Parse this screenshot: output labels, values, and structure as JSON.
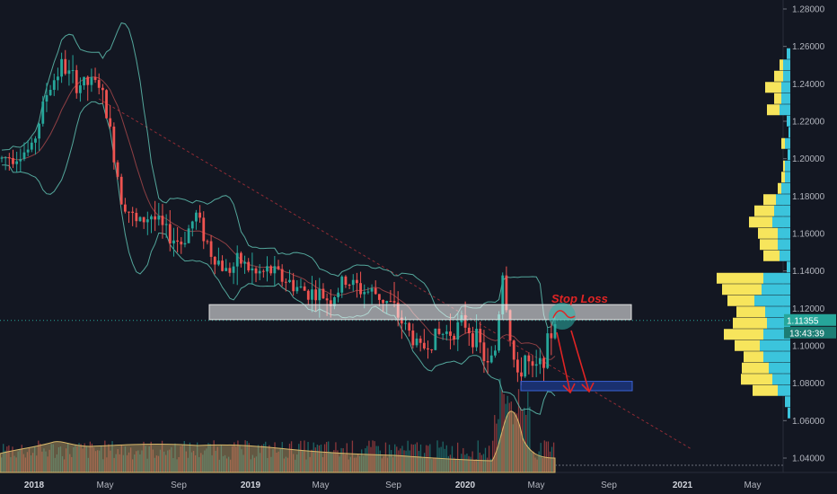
{
  "chart_data": {
    "type": "candlestick",
    "ylim": [
      1.04,
      1.28
    ],
    "y_ticks": [
      "1.04000",
      "1.06000",
      "1.08000",
      "1.10000",
      "1.12000",
      "1.14000",
      "1.16000",
      "1.18000",
      "1.20000",
      "1.22000",
      "1.24000",
      "1.26000",
      "1.28000"
    ],
    "x_tick_labels": [
      {
        "label": "2018",
        "bold": true
      },
      {
        "label": "May",
        "bold": false
      },
      {
        "label": "Sep",
        "bold": false
      },
      {
        "label": "2019",
        "bold": true
      },
      {
        "label": "May",
        "bold": false
      },
      {
        "label": "Sep",
        "bold": false
      },
      {
        "label": "2020",
        "bold": true
      },
      {
        "label": "May",
        "bold": false
      },
      {
        "label": "Sep",
        "bold": false
      },
      {
        "label": "2021",
        "bold": true
      },
      {
        "label": "May",
        "bold": false
      }
    ],
    "price_path": [
      [
        0,
        1.2
      ],
      [
        8,
        1.205
      ],
      [
        12,
        1.235
      ],
      [
        16,
        1.25
      ],
      [
        20,
        1.24
      ],
      [
        26,
        1.24
      ],
      [
        28,
        1.225
      ],
      [
        32,
        1.18
      ],
      [
        36,
        1.165
      ],
      [
        40,
        1.17
      ],
      [
        44,
        1.16
      ],
      [
        48,
        1.155
      ],
      [
        52,
        1.17
      ],
      [
        56,
        1.15
      ],
      [
        60,
        1.14
      ],
      [
        64,
        1.145
      ],
      [
        68,
        1.138
      ],
      [
        72,
        1.14
      ],
      [
        76,
        1.135
      ],
      [
        80,
        1.13
      ],
      [
        84,
        1.128
      ],
      [
        88,
        1.125
      ],
      [
        92,
        1.135
      ],
      [
        96,
        1.13
      ],
      [
        100,
        1.128
      ],
      [
        104,
        1.122
      ],
      [
        108,
        1.11
      ],
      [
        112,
        1.098
      ],
      [
        116,
        1.105
      ],
      [
        120,
        1.108
      ],
      [
        124,
        1.112
      ],
      [
        128,
        1.1
      ],
      [
        130,
        1.088
      ],
      [
        132,
        1.098
      ],
      [
        134,
        1.14
      ],
      [
        136,
        1.105
      ],
      [
        138,
        1.08
      ],
      [
        140,
        1.095
      ],
      [
        142,
        1.085
      ],
      [
        144,
        1.09
      ],
      [
        146,
        1.1
      ],
      [
        148,
        1.1135
      ]
    ],
    "last_price": "1.11355",
    "countdown": "13:43:39",
    "annotations": {
      "resistance_zone": [
        1.114,
        1.122
      ],
      "target_zone": [
        1.076,
        1.081
      ],
      "stop_loss_label": "Stop Loss"
    },
    "volume_profile": [
      {
        "price": 1.064,
        "left": 0,
        "right": 3
      },
      {
        "price": 1.07,
        "left": 0,
        "right": 6
      },
      {
        "price": 1.076,
        "left": 28,
        "right": 14
      },
      {
        "price": 1.082,
        "left": 35,
        "right": 20
      },
      {
        "price": 1.088,
        "left": 30,
        "right": 24
      },
      {
        "price": 1.094,
        "left": 22,
        "right": 30
      },
      {
        "price": 1.1,
        "left": 28,
        "right": 34
      },
      {
        "price": 1.106,
        "left": 44,
        "right": 30
      },
      {
        "price": 1.112,
        "left": 38,
        "right": 26
      },
      {
        "price": 1.118,
        "left": 32,
        "right": 28
      },
      {
        "price": 1.124,
        "left": 30,
        "right": 40
      },
      {
        "price": 1.13,
        "left": 44,
        "right": 32
      },
      {
        "price": 1.136,
        "left": 52,
        "right": 30
      },
      {
        "price": 1.142,
        "left": 0,
        "right": 4
      },
      {
        "price": 1.148,
        "left": 18,
        "right": 12
      },
      {
        "price": 1.154,
        "left": 20,
        "right": 14
      },
      {
        "price": 1.16,
        "left": 22,
        "right": 14
      },
      {
        "price": 1.166,
        "left": 26,
        "right": 20
      },
      {
        "price": 1.172,
        "left": 22,
        "right": 18
      },
      {
        "price": 1.178,
        "left": 14,
        "right": 16
      },
      {
        "price": 1.184,
        "left": 4,
        "right": 10
      },
      {
        "price": 1.19,
        "left": 4,
        "right": 6
      },
      {
        "price": 1.196,
        "left": 2,
        "right": 6
      },
      {
        "price": 1.202,
        "left": 0,
        "right": 3
      },
      {
        "price": 1.208,
        "left": 4,
        "right": 6
      },
      {
        "price": 1.214,
        "left": 0,
        "right": 2
      },
      {
        "price": 1.22,
        "left": 0,
        "right": 4
      },
      {
        "price": 1.226,
        "left": 14,
        "right": 12
      },
      {
        "price": 1.232,
        "left": 8,
        "right": 10
      },
      {
        "price": 1.238,
        "left": 18,
        "right": 10
      },
      {
        "price": 1.244,
        "left": 10,
        "right": 8
      },
      {
        "price": 1.25,
        "left": 4,
        "right": 8
      },
      {
        "price": 1.256,
        "left": 0,
        "right": 4
      }
    ],
    "colors": {
      "background": "#131722",
      "bull": "#26a69a",
      "bear": "#ef5350",
      "band": "#5fbfb0",
      "profile_left": "#f7e55c",
      "profile_right": "#3bc4dc",
      "annotation": "#e02424",
      "volume_area": "#c5a96a"
    }
  }
}
